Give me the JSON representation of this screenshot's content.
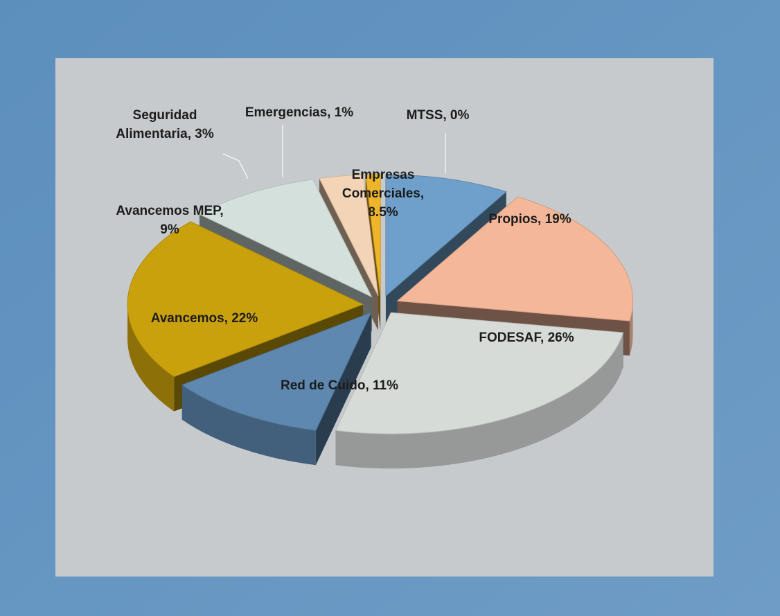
{
  "chart_data": {
    "type": "pie3d",
    "value_labels": [
      "Empresas\nComerciales,\n8.5%",
      "Propios, 19%",
      "FODESAF, 26%",
      "Red de Cuido, 11%",
      "Avancemos, 22%",
      "Avancemos MEP,\n9%",
      "Seguridad\nAlimentaria, 3%",
      "Emergencias, 1%",
      "MTSS, 0%"
    ],
    "values": [
      8.5,
      19,
      26,
      11,
      22,
      9,
      3,
      1,
      0
    ],
    "colors": [
      "#6f9fcb",
      "#f4b79a",
      "#d6dbd7",
      "#5e88b0",
      "#c9a10c",
      "#d3e0dc",
      "#f4d4b6",
      "#efb52a",
      "#1a3766"
    ]
  }
}
